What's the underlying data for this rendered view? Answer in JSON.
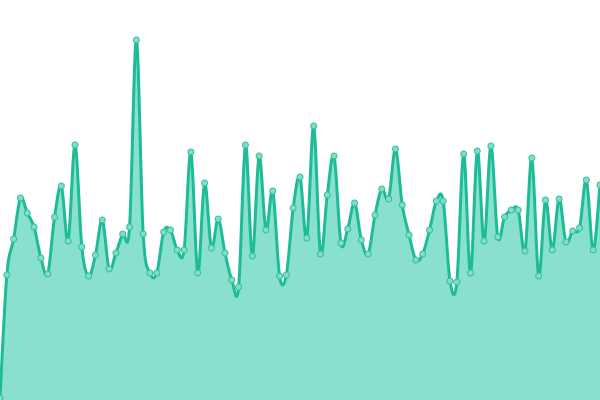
{
  "chart_data": {
    "type": "area",
    "title": "",
    "xlabel": "",
    "ylabel": "",
    "axes_visible": false,
    "grid": false,
    "legend": "none",
    "ylim": [
      0,
      400
    ],
    "x": [
      0,
      1,
      2,
      3,
      4,
      5,
      6,
      7,
      8,
      9,
      10,
      11,
      12,
      13,
      14,
      15,
      16,
      17,
      18,
      19,
      20,
      21,
      22,
      23,
      24,
      25,
      26,
      27,
      28,
      29,
      30,
      31,
      32,
      33,
      34,
      35,
      36,
      37,
      38,
      39,
      40,
      41,
      42,
      43,
      44,
      45,
      46,
      47,
      48,
      49,
      50,
      51,
      52,
      53,
      54,
      55,
      56,
      57,
      58,
      59,
      60,
      61,
      62,
      63,
      64,
      65,
      66,
      67,
      68,
      69,
      70,
      71,
      72,
      73,
      74,
      75,
      76,
      77,
      78,
      79,
      80,
      81,
      82,
      83,
      84,
      85,
      86,
      87,
      88
    ],
    "values": [
      2,
      125,
      161,
      202,
      187,
      173,
      142,
      126,
      183,
      214,
      159,
      255,
      153,
      124,
      145,
      180,
      131,
      147,
      166,
      173,
      360,
      166,
      127,
      127,
      168,
      170,
      150,
      150,
      248,
      127,
      217,
      152,
      181,
      147,
      120,
      113,
      255,
      144,
      244,
      170,
      209,
      124,
      125,
      192,
      223,
      162,
      274,
      146,
      205,
      244,
      157,
      171,
      197,
      160,
      146,
      185,
      211,
      201,
      251,
      195,
      165,
      140,
      146,
      170,
      199,
      199,
      119,
      118,
      246,
      127,
      249,
      159,
      254,
      163,
      183,
      190,
      190,
      149,
      242,
      124,
      200,
      150,
      201,
      158,
      169,
      172,
      220,
      150,
      215
    ],
    "colors": {
      "line": "#1dbc97",
      "fill": "#89e0cf",
      "point_fill": "#84dcc8",
      "point_stroke": "#2cc19e"
    }
  }
}
